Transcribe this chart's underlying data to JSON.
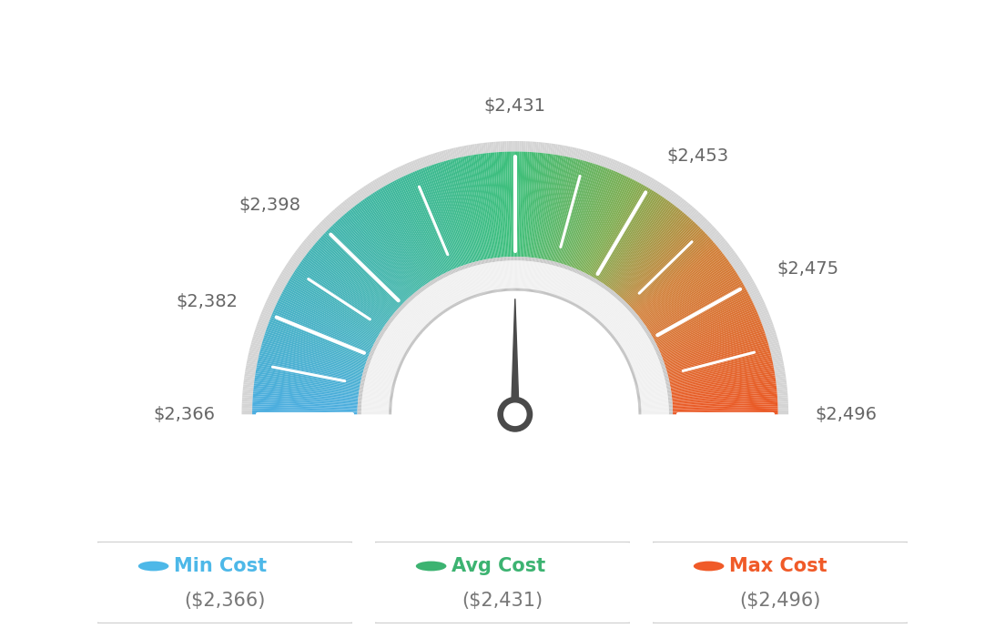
{
  "min_val": 2366,
  "max_val": 2496,
  "avg_val": 2431,
  "tick_values": [
    2366,
    2382,
    2398,
    2431,
    2453,
    2475,
    2496
  ],
  "tick_label_texts": {
    "2366": "$2,366",
    "2382": "$2,382",
    "2398": "$2,398",
    "2431": "$2,431",
    "2453": "$2,453",
    "2475": "$2,475",
    "2496": "$2,496"
  },
  "legend": [
    {
      "label": "Min Cost",
      "sublabel": "($2,366)",
      "color": "#4db8e8"
    },
    {
      "label": "Avg Cost",
      "sublabel": "($2,431)",
      "color": "#3cb371"
    },
    {
      "label": "Max Cost",
      "sublabel": "($2,496)",
      "color": "#f05a28"
    }
  ],
  "background_color": "#ffffff",
  "needle_value": 2431,
  "color_stops": [
    [
      0.0,
      [
        0.3,
        0.68,
        0.88
      ]
    ],
    [
      0.35,
      [
        0.24,
        0.72,
        0.6
      ]
    ],
    [
      0.5,
      [
        0.24,
        0.75,
        0.48
      ]
    ],
    [
      0.65,
      [
        0.5,
        0.68,
        0.32
      ]
    ],
    [
      0.78,
      [
        0.82,
        0.5,
        0.22
      ]
    ],
    [
      1.0,
      [
        0.92,
        0.35,
        0.15
      ]
    ]
  ]
}
